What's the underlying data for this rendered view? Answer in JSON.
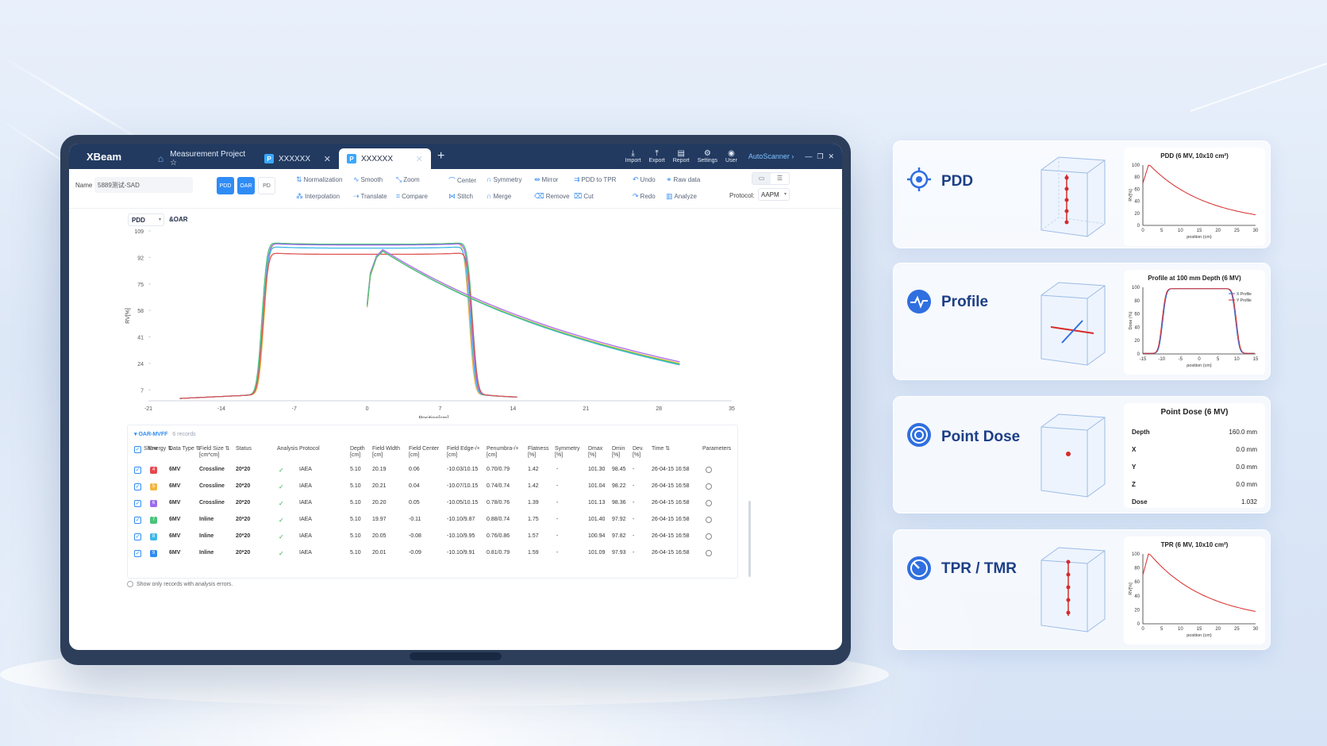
{
  "app": {
    "brand": "XBeam"
  },
  "tabs": [
    {
      "label": "Measurement Project ☆",
      "type": "home",
      "icon": "home-icon"
    },
    {
      "label": "XXXXXX",
      "type": "doc",
      "icon": "P"
    },
    {
      "label": "XXXXXX",
      "type": "doc",
      "icon": "P",
      "active": true
    }
  ],
  "top_tools": [
    {
      "label": "Import",
      "icon": "import-icon"
    },
    {
      "label": "Export",
      "icon": "export-icon"
    },
    {
      "label": "Report",
      "icon": "report-icon"
    },
    {
      "label": "Settings",
      "icon": "gear-icon"
    },
    {
      "label": "User",
      "icon": "user-icon"
    }
  ],
  "autoscanner": "AutoScanner ›",
  "toolbar": {
    "name_label": "Name",
    "name_value": "5889测试-SAD",
    "modes": [
      "PDD",
      "OAR",
      "PD"
    ],
    "tools_row1": [
      "Normalization",
      "Smooth",
      "Zoom",
      "Center",
      "Symmetry",
      "Mirror",
      "PDD to TPR",
      "Undo",
      "Raw data"
    ],
    "tools_row2": [
      "Interpolation",
      "Translate",
      "Compare",
      "Stitch",
      "Merge",
      "Remove",
      "Cut",
      "Redo",
      "Analyze"
    ],
    "protocol_label": "Protocol:",
    "protocol_value": "AAPM"
  },
  "chart_selector": {
    "value": "PDD",
    "extra": "&OAR"
  },
  "chart_data": {
    "type": "line",
    "xlabel": "Position[cm]",
    "ylabel": "RV[%]",
    "x_ticks": [
      -21,
      -14,
      -7,
      0,
      7,
      14,
      21,
      28,
      35
    ],
    "y_ticks": [
      7,
      24,
      41,
      58,
      75,
      92,
      109
    ],
    "xlim": [
      -21,
      35
    ],
    "ylim": [
      0,
      109
    ],
    "profiles": [
      {
        "color": "#f2b640",
        "plateau": 100.5,
        "left": -9.9,
        "right": 9.8
      },
      {
        "color": "#49c37a",
        "plateau": 100.5,
        "left": -10.1,
        "right": 10.1
      },
      {
        "color": "#9b6bf0",
        "plateau": 100.0,
        "left": -10.0,
        "right": 10.0
      },
      {
        "color": "#3fb7e8",
        "plateau": 98.0,
        "left": -10.0,
        "right": 9.9
      },
      {
        "color": "#e05555",
        "plateau": 94.0,
        "left": -10.0,
        "right": 10.1
      }
    ],
    "pdds": [
      {
        "color": "#a86bf0",
        "start": 62,
        "peak": 97,
        "end": 25
      },
      {
        "color": "#3fb7e8",
        "start": 60,
        "peak": 96,
        "end": 23
      },
      {
        "color": "#f2b640",
        "start": 60,
        "peak": 96,
        "end": 24
      },
      {
        "color": "#49c37a",
        "start": 61,
        "peak": 96,
        "end": 23.5
      }
    ]
  },
  "table": {
    "group": "OAR-MVFF",
    "count": "6 records",
    "headers": [
      "Show",
      "Energy ⇅",
      "Data Type ⇅",
      "Field Size ⇅\n[cm*cm]",
      "Status",
      "Analysis Protocol",
      "Depth\n[cm]",
      "Field Width\n[cm]",
      "Field Center\n[cm]",
      "Field Edge-/+\n[cm]",
      "Penumbra-/+\n[cm]",
      "Flatness\n[%]",
      "Symmetry\n[%]",
      "Dmax\n[%]",
      "Dmin\n[%]",
      "Dev.\n[%]",
      "Time ⇅",
      "Parameters"
    ],
    "rows": [
      {
        "idx": "4",
        "color": "#e5484d",
        "energy": "6MV",
        "type": "Crossline",
        "size": "20*20",
        "protocol": "IAEA",
        "depth": "5.10",
        "width": "20.19",
        "center": "0.06",
        "edge": "-10.03/10.15",
        "pen": "0.70/0.79",
        "flat": "1.42",
        "sym": "-",
        "dmax": "101.30",
        "dmin": "98.45",
        "dev": "-",
        "time": "26-04-15 16:58"
      },
      {
        "idx": "5",
        "color": "#f2b640",
        "energy": "6MV",
        "type": "Crossline",
        "size": "20*20",
        "protocol": "IAEA",
        "depth": "5.10",
        "width": "20.21",
        "center": "0.04",
        "edge": "-10.07/10.15",
        "pen": "0.74/0.74",
        "flat": "1.42",
        "sym": "-",
        "dmax": "101.04",
        "dmin": "98.22",
        "dev": "-",
        "time": "26-04-15 16:58"
      },
      {
        "idx": "6",
        "color": "#9b6bf0",
        "energy": "6MV",
        "type": "Crossline",
        "size": "20*20",
        "protocol": "IAEA",
        "depth": "5.10",
        "width": "20.20",
        "center": "0.05",
        "edge": "-10.05/10.15",
        "pen": "0.78/0.76",
        "flat": "1.39",
        "sym": "-",
        "dmax": "101.13",
        "dmin": "98.36",
        "dev": "-",
        "time": "26-04-15 16:58"
      },
      {
        "idx": "7",
        "color": "#49c37a",
        "energy": "6MV",
        "type": "Inline",
        "size": "20*20",
        "protocol": "IAEA",
        "depth": "5.10",
        "width": "19.97",
        "center": "-0.11",
        "edge": "-10.10/9.87",
        "pen": "0.88/0.74",
        "flat": "1.75",
        "sym": "-",
        "dmax": "101.40",
        "dmin": "97.92",
        "dev": "-",
        "time": "26-04-15 16:58"
      },
      {
        "idx": "8",
        "color": "#3fb7e8",
        "energy": "6MV",
        "type": "Inline",
        "size": "20*20",
        "protocol": "IAEA",
        "depth": "5.10",
        "width": "20.05",
        "center": "-0.08",
        "edge": "-10.10/9.95",
        "pen": "0.76/0.86",
        "flat": "1.57",
        "sym": "-",
        "dmax": "100.94",
        "dmin": "97.82",
        "dev": "-",
        "time": "26-04-15 16:58"
      },
      {
        "idx": "9",
        "color": "#2f8cf5",
        "energy": "6MV",
        "type": "Inline",
        "size": "20*20",
        "protocol": "IAEA",
        "depth": "5.10",
        "width": "20.01",
        "center": "-0.09",
        "edge": "-10.10/9.91",
        "pen": "0.81/0.79",
        "flat": "1.59",
        "sym": "-",
        "dmax": "101.09",
        "dmin": "97.93",
        "dev": "-",
        "time": "26-04-15 16:58"
      }
    ],
    "show_errors_label": "Show only records with analysis errors."
  },
  "cards": [
    {
      "title": "PDD",
      "icon": "target-icon",
      "mini_title": "PDD (6 MV, 10x10 cm²)",
      "ylabel": "RV[%]",
      "xlabel": "position (cm)",
      "x_ticks": [
        0,
        5,
        10,
        15,
        20,
        25,
        30
      ],
      "y_ticks": [
        0,
        20,
        40,
        60,
        80,
        100
      ]
    },
    {
      "title": "Profile",
      "icon": "waveform-icon",
      "mini_title": "Profile at 100 mm Depth (6 MV)",
      "ylabel": "Dose (%)",
      "xlabel": "position (cm)",
      "x_ticks": [
        -15,
        -10,
        -5,
        0,
        5,
        10,
        15
      ],
      "y_ticks": [
        0,
        20,
        40,
        60,
        80,
        100
      ],
      "legend": [
        "X Profile",
        "Y Profile"
      ]
    },
    {
      "title": "Point Dose",
      "icon": "concentric-icon",
      "mini_title": "Point Dose (6 MV)",
      "rows": [
        [
          "Depth",
          "160.0 mm"
        ],
        [
          "X",
          "0.0 mm"
        ],
        [
          "Y",
          "0.0 mm"
        ],
        [
          "Z",
          "0.0 mm"
        ],
        [
          "Dose",
          "1.032"
        ]
      ]
    },
    {
      "title": "TPR / TMR",
      "icon": "gauge-icon",
      "mini_title": "TPR (6 MV, 10x10 cm²)",
      "ylabel": "RV[%]",
      "xlabel": "position (cm)",
      "x_ticks": [
        0,
        5,
        10,
        15,
        20,
        25,
        30
      ],
      "y_ticks": [
        0,
        20,
        40,
        60,
        80,
        100
      ]
    }
  ],
  "colors": {
    "accent": "#2f8cf5",
    "titlebar": "#223a60",
    "card_title": "#1d3f86",
    "curve": "#d62b2b"
  }
}
